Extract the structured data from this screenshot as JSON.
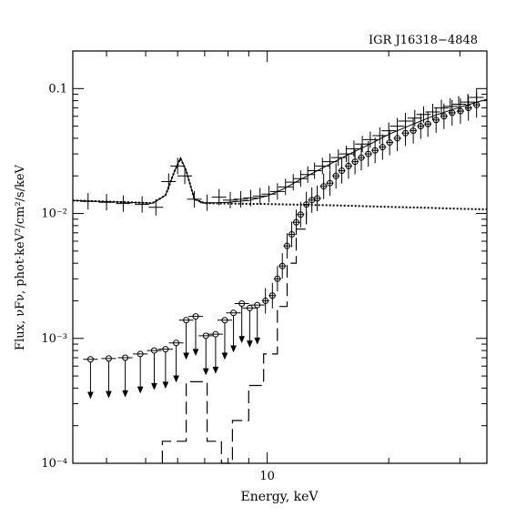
{
  "chart_data": {
    "type": "scatter",
    "title": "IGR J16318−4848",
    "xlabel": "Energy, keV",
    "ylabel": "Flux, νFν, phot·keV²/cm²/s/keV",
    "x_scale": "log",
    "y_scale": "log",
    "xlim": [
      3.3,
      35
    ],
    "ylim": [
      0.0001,
      0.2
    ],
    "x_ticks": [
      10
    ],
    "x_tick_labels": [
      "10"
    ],
    "y_ticks": [
      0.0001,
      0.001,
      0.01,
      0.1
    ],
    "y_tick_labels": [
      "10⁻⁴",
      "10⁻³",
      "10⁻²",
      "0.1"
    ],
    "grid": false,
    "series": [
      {
        "marker": "cross",
        "points": [
          {
            "x": 3.6,
            "y": 0.0125
          },
          {
            "x": 4.0,
            "y": 0.0123
          },
          {
            "x": 4.4,
            "y": 0.012
          },
          {
            "x": 4.9,
            "y": 0.0118
          },
          {
            "x": 5.3,
            "y": 0.0112
          },
          {
            "x": 5.7,
            "y": 0.018
          },
          {
            "x": 6.0,
            "y": 0.024
          },
          {
            "x": 6.25,
            "y": 0.02
          },
          {
            "x": 6.6,
            "y": 0.013
          },
          {
            "x": 7.1,
            "y": 0.0122
          },
          {
            "x": 7.6,
            "y": 0.0135
          },
          {
            "x": 8.1,
            "y": 0.0128
          },
          {
            "x": 8.6,
            "y": 0.013
          },
          {
            "x": 9.1,
            "y": 0.0133
          },
          {
            "x": 9.6,
            "y": 0.0138
          },
          {
            "x": 10.1,
            "y": 0.0143
          },
          {
            "x": 10.6,
            "y": 0.015
          },
          {
            "x": 11.1,
            "y": 0.0163
          },
          {
            "x": 11.6,
            "y": 0.0178
          },
          {
            "x": 12.1,
            "y": 0.019
          },
          {
            "x": 12.6,
            "y": 0.0205
          },
          {
            "x": 13.1,
            "y": 0.022
          },
          {
            "x": 13.7,
            "y": 0.024
          },
          {
            "x": 14.3,
            "y": 0.026
          },
          {
            "x": 15.0,
            "y": 0.028
          },
          {
            "x": 15.7,
            "y": 0.03
          },
          {
            "x": 16.4,
            "y": 0.033
          },
          {
            "x": 17.2,
            "y": 0.036
          },
          {
            "x": 18.0,
            "y": 0.039
          },
          {
            "x": 19.0,
            "y": 0.042
          },
          {
            "x": 20.0,
            "y": 0.046
          },
          {
            "x": 21.0,
            "y": 0.05
          },
          {
            "x": 22.0,
            "y": 0.055
          },
          {
            "x": 23.2,
            "y": 0.058
          },
          {
            "x": 24.4,
            "y": 0.062
          },
          {
            "x": 25.7,
            "y": 0.065
          },
          {
            "x": 27.0,
            "y": 0.07
          },
          {
            "x": 28.4,
            "y": 0.072
          },
          {
            "x": 29.8,
            "y": 0.075
          },
          {
            "x": 31.4,
            "y": 0.078
          },
          {
            "x": 33.0,
            "y": 0.085
          }
        ]
      },
      {
        "marker": "circle",
        "points": [
          {
            "x": 9.9,
            "y": 0.002
          },
          {
            "x": 10.3,
            "y": 0.0022
          },
          {
            "x": 10.6,
            "y": 0.003
          },
          {
            "x": 10.9,
            "y": 0.0038
          },
          {
            "x": 11.2,
            "y": 0.0055
          },
          {
            "x": 11.5,
            "y": 0.0068
          },
          {
            "x": 11.8,
            "y": 0.0085
          },
          {
            "x": 12.1,
            "y": 0.0098
          },
          {
            "x": 12.5,
            "y": 0.0118
          },
          {
            "x": 12.9,
            "y": 0.0128
          },
          {
            "x": 13.3,
            "y": 0.0132
          },
          {
            "x": 13.8,
            "y": 0.0165
          },
          {
            "x": 14.3,
            "y": 0.0175
          },
          {
            "x": 14.8,
            "y": 0.02
          },
          {
            "x": 15.3,
            "y": 0.022
          },
          {
            "x": 15.9,
            "y": 0.024
          },
          {
            "x": 16.5,
            "y": 0.026
          },
          {
            "x": 17.1,
            "y": 0.028
          },
          {
            "x": 17.8,
            "y": 0.03
          },
          {
            "x": 18.5,
            "y": 0.032
          },
          {
            "x": 19.3,
            "y": 0.034
          },
          {
            "x": 20.1,
            "y": 0.037
          },
          {
            "x": 21.0,
            "y": 0.04
          },
          {
            "x": 22.0,
            "y": 0.044
          },
          {
            "x": 23.0,
            "y": 0.046
          },
          {
            "x": 24.0,
            "y": 0.05
          },
          {
            "x": 25.0,
            "y": 0.052
          },
          {
            "x": 26.2,
            "y": 0.056
          },
          {
            "x": 27.4,
            "y": 0.06
          },
          {
            "x": 28.7,
            "y": 0.064
          },
          {
            "x": 30.1,
            "y": 0.066
          },
          {
            "x": 31.5,
            "y": 0.07
          },
          {
            "x": 33.0,
            "y": 0.074
          }
        ]
      },
      {
        "marker": "circle-upper-limit",
        "points": [
          {
            "x": 3.65,
            "y": 0.00068
          },
          {
            "x": 4.05,
            "y": 0.00069
          },
          {
            "x": 4.45,
            "y": 0.0007
          },
          {
            "x": 4.85,
            "y": 0.00075
          },
          {
            "x": 5.25,
            "y": 0.0008
          },
          {
            "x": 5.6,
            "y": 0.00082
          },
          {
            "x": 5.95,
            "y": 0.00092
          },
          {
            "x": 6.3,
            "y": 0.0014
          },
          {
            "x": 6.65,
            "y": 0.0015
          },
          {
            "x": 7.05,
            "y": 0.00105
          },
          {
            "x": 7.45,
            "y": 0.00108
          },
          {
            "x": 7.85,
            "y": 0.0014
          },
          {
            "x": 8.25,
            "y": 0.0016
          },
          {
            "x": 8.65,
            "y": 0.0019
          },
          {
            "x": 9.05,
            "y": 0.00175
          },
          {
            "x": 9.45,
            "y": 0.00185
          }
        ]
      }
    ],
    "model_total": [
      {
        "x": 3.3,
        "y": 0.0127
      },
      {
        "x": 4.5,
        "y": 0.0123
      },
      {
        "x": 5.2,
        "y": 0.0121
      },
      {
        "x": 5.6,
        "y": 0.014
      },
      {
        "x": 5.9,
        "y": 0.022
      },
      {
        "x": 6.1,
        "y": 0.028
      },
      {
        "x": 6.3,
        "y": 0.022
      },
      {
        "x": 6.6,
        "y": 0.013
      },
      {
        "x": 7.0,
        "y": 0.0121
      },
      {
        "x": 8.0,
        "y": 0.0123
      },
      {
        "x": 9.0,
        "y": 0.0127
      },
      {
        "x": 10.0,
        "y": 0.0138
      },
      {
        "x": 11.0,
        "y": 0.0158
      },
      {
        "x": 12.0,
        "y": 0.0185
      },
      {
        "x": 14.0,
        "y": 0.024
      },
      {
        "x": 16.0,
        "y": 0.03
      },
      {
        "x": 18.0,
        "y": 0.036
      },
      {
        "x": 20.0,
        "y": 0.043
      },
      {
        "x": 23.0,
        "y": 0.052
      },
      {
        "x": 26.0,
        "y": 0.061
      },
      {
        "x": 30.0,
        "y": 0.071
      },
      {
        "x": 35.0,
        "y": 0.082
      }
    ],
    "model_soft": [
      {
        "x": 3.3,
        "y": 0.0127
      },
      {
        "x": 4.5,
        "y": 0.0123
      },
      {
        "x": 5.2,
        "y": 0.0121
      },
      {
        "x": 5.6,
        "y": 0.014
      },
      {
        "x": 5.9,
        "y": 0.022
      },
      {
        "x": 6.1,
        "y": 0.0275
      },
      {
        "x": 6.3,
        "y": 0.022
      },
      {
        "x": 6.6,
        "y": 0.013
      },
      {
        "x": 7.0,
        "y": 0.0121
      },
      {
        "x": 10.0,
        "y": 0.0119
      },
      {
        "x": 15.0,
        "y": 0.0116
      },
      {
        "x": 20.0,
        "y": 0.0113
      },
      {
        "x": 25.0,
        "y": 0.0111
      },
      {
        "x": 30.0,
        "y": 0.0109
      },
      {
        "x": 35.0,
        "y": 0.0108
      }
    ],
    "model_hard_step": [
      {
        "x": 5.5,
        "y": 0.0001
      },
      {
        "x": 5.5,
        "y": 0.00015
      },
      {
        "x": 6.3,
        "y": 0.00015
      },
      {
        "x": 6.3,
        "y": 0.00045
      },
      {
        "x": 7.1,
        "y": 0.00045
      },
      {
        "x": 7.1,
        "y": 0.00015
      },
      {
        "x": 7.7,
        "y": 0.00015
      },
      {
        "x": 7.7,
        "y": 0.0001
      },
      {
        "x": 8.2,
        "y": 0.0001
      },
      {
        "x": 8.2,
        "y": 0.00022
      },
      {
        "x": 9.0,
        "y": 0.00022
      },
      {
        "x": 9.0,
        "y": 0.00042
      },
      {
        "x": 9.8,
        "y": 0.00042
      },
      {
        "x": 9.8,
        "y": 0.00075
      },
      {
        "x": 10.6,
        "y": 0.00075
      },
      {
        "x": 10.6,
        "y": 0.0018
      },
      {
        "x": 11.2,
        "y": 0.0018
      },
      {
        "x": 11.2,
        "y": 0.004
      },
      {
        "x": 11.8,
        "y": 0.004
      },
      {
        "x": 11.8,
        "y": 0.0075
      },
      {
        "x": 12.5,
        "y": 0.0075
      },
      {
        "x": 12.5,
        "y": 0.0108
      }
    ]
  }
}
